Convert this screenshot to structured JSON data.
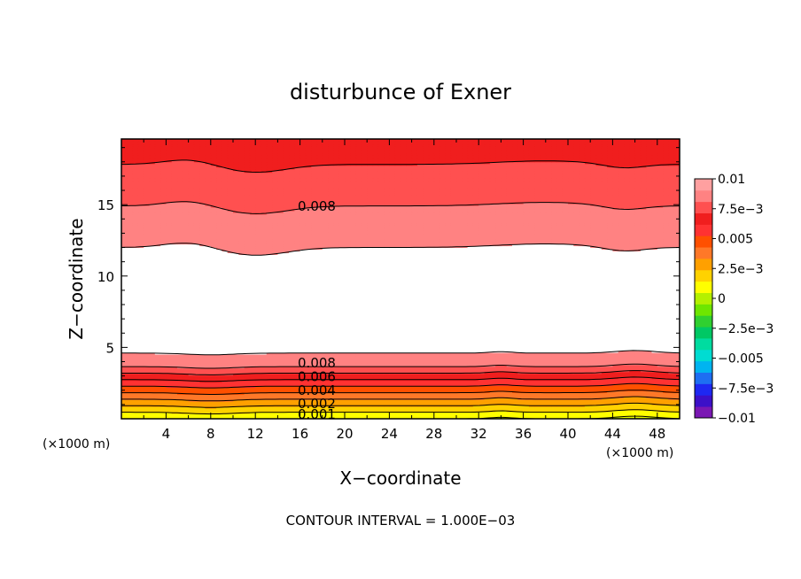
{
  "chart_data": {
    "type": "contour",
    "title": "disturbunce of Exner",
    "xlabel": "X−coordinate",
    "ylabel": "Z−coordinate",
    "x_unit_left": "(×1000 m)",
    "x_unit_right": "(×1000 m)",
    "xlim": [
      0,
      50
    ],
    "ylim": [
      0,
      19.6
    ],
    "x_ticks": [
      "4",
      "8",
      "12",
      "16",
      "20",
      "24",
      "28",
      "32",
      "36",
      "40",
      "44",
      "48"
    ],
    "y_ticks": [
      "5",
      "10",
      "15"
    ],
    "footer": "CONTOUR INTERVAL = 1.000E−03",
    "contour_interval": 0.001,
    "colorbar": {
      "min": -0.01,
      "max": 0.01,
      "labels": [
        "0.01",
        "7.5e−3",
        "0.005",
        "2.5e−3",
        "0",
        "−2.5e−3",
        "−0.005",
        "−7.5e−3",
        "−0.01"
      ],
      "colors": [
        "#7a17b3",
        "#3c10c8",
        "#1e28f2",
        "#1e6ef2",
        "#00b4f0",
        "#00dcd2",
        "#00dca0",
        "#00c864",
        "#30d030",
        "#6ee600",
        "#b4f000",
        "#ffff00",
        "#ffd200",
        "#ffa000",
        "#ff7828",
        "#ff5000",
        "#ff3232",
        "#f01e1e",
        "#ff5050",
        "#ff8282",
        "#ffa0a0"
      ]
    },
    "contour_labels": [
      {
        "text": "0.008",
        "x": 17.5,
        "z": 14.9
      },
      {
        "text": "0.008",
        "x": 17.5,
        "z": 3.9
      },
      {
        "text": "0.006",
        "x": 17.5,
        "z": 2.95
      },
      {
        "text": "0.004",
        "x": 17.5,
        "z": 2.0
      },
      {
        "text": "0.002",
        "x": 17.5,
        "z": 1.05
      },
      {
        "text": "0.001",
        "x": 17.5,
        "z": 0.3
      }
    ]
  }
}
